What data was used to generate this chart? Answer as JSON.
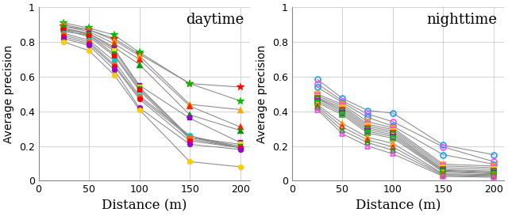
{
  "x": [
    25,
    50,
    75,
    100,
    150,
    200
  ],
  "daytime_series": [
    {
      "values": [
        0.89,
        0.87,
        0.82,
        0.73,
        0.56,
        0.54
      ],
      "color": "#ff0000",
      "marker": "*",
      "ms": 7,
      "mew": 0.5
    },
    {
      "values": [
        0.91,
        0.88,
        0.84,
        0.74,
        0.56,
        0.46
      ],
      "color": "#00bb00",
      "marker": "*",
      "ms": 7,
      "mew": 0.5
    },
    {
      "values": [
        0.9,
        0.87,
        0.81,
        0.72,
        0.44,
        0.41
      ],
      "color": "#ffaa00",
      "marker": "^",
      "ms": 6,
      "mew": 0.5
    },
    {
      "values": [
        0.89,
        0.86,
        0.79,
        0.7,
        0.43,
        0.31
      ],
      "color": "#ff2200",
      "marker": "^",
      "ms": 6,
      "mew": 0.5
    },
    {
      "values": [
        0.88,
        0.85,
        0.77,
        0.67,
        0.38,
        0.29
      ],
      "color": "#009900",
      "marker": "^",
      "ms": 6,
      "mew": 0.5
    },
    {
      "values": [
        0.87,
        0.85,
        0.76,
        0.55,
        0.36,
        0.22
      ],
      "color": "#9900cc",
      "marker": "s",
      "ms": 5,
      "mew": 0.5
    },
    {
      "values": [
        0.86,
        0.84,
        0.75,
        0.54,
        0.25,
        0.21
      ],
      "color": "#ffdd00",
      "marker": "s",
      "ms": 5,
      "mew": 0.5
    },
    {
      "values": [
        0.88,
        0.84,
        0.73,
        0.53,
        0.25,
        0.2
      ],
      "color": "#00aa00",
      "marker": "s",
      "ms": 5,
      "mew": 0.5
    },
    {
      "values": [
        0.87,
        0.83,
        0.72,
        0.52,
        0.24,
        0.19
      ],
      "color": "#ff0000",
      "marker": "s",
      "ms": 5,
      "mew": 0.5
    },
    {
      "values": [
        0.85,
        0.81,
        0.69,
        0.49,
        0.26,
        0.19
      ],
      "color": "#00cccc",
      "marker": "o",
      "ms": 5,
      "mew": 0.5
    },
    {
      "values": [
        0.84,
        0.8,
        0.67,
        0.48,
        0.25,
        0.19
      ],
      "color": "#ff6600",
      "marker": "o",
      "ms": 5,
      "mew": 0.5
    },
    {
      "values": [
        0.83,
        0.79,
        0.66,
        0.47,
        0.23,
        0.19
      ],
      "color": "#ff0000",
      "marker": "o",
      "ms": 5,
      "mew": 0.5
    },
    {
      "values": [
        0.82,
        0.78,
        0.64,
        0.42,
        0.21,
        0.18
      ],
      "color": "#9900cc",
      "marker": "o",
      "ms": 5,
      "mew": 0.5
    },
    {
      "values": [
        0.8,
        0.75,
        0.61,
        0.41,
        0.11,
        0.08
      ],
      "color": "#ffcc00",
      "marker": "o",
      "ms": 5,
      "mew": 0.5
    }
  ],
  "nighttime_series": [
    {
      "values": [
        0.585,
        0.475,
        0.405,
        0.39,
        0.205,
        0.15
      ],
      "color": "#2299ff",
      "marker": "o",
      "ms": 5,
      "mew": 1.2
    },
    {
      "values": [
        0.56,
        0.46,
        0.385,
        0.34,
        0.195,
        0.11
      ],
      "color": "#ff44ff",
      "marker": "o",
      "ms": 5,
      "mew": 1.2
    },
    {
      "values": [
        0.54,
        0.45,
        0.365,
        0.315,
        0.15,
        0.095
      ],
      "color": "#00aaff",
      "marker": "o",
      "ms": 5,
      "mew": 1.2
    },
    {
      "values": [
        0.5,
        0.44,
        0.34,
        0.305,
        0.095,
        0.085
      ],
      "color": "#ff9900",
      "marker": "s",
      "ms": 5,
      "mew": 1.2
    },
    {
      "values": [
        0.49,
        0.43,
        0.325,
        0.295,
        0.085,
        0.075
      ],
      "color": "#ff44ff",
      "marker": "s",
      "ms": 5,
      "mew": 1.2
    },
    {
      "values": [
        0.48,
        0.42,
        0.315,
        0.285,
        0.075,
        0.065
      ],
      "color": "#ffcc00",
      "marker": "s",
      "ms": 5,
      "mew": 1.2
    },
    {
      "values": [
        0.475,
        0.41,
        0.305,
        0.275,
        0.065,
        0.055
      ],
      "color": "#ff2200",
      "marker": "s",
      "ms": 5,
      "mew": 1.2
    },
    {
      "values": [
        0.47,
        0.4,
        0.295,
        0.265,
        0.06,
        0.05
      ],
      "color": "#00aa00",
      "marker": "s",
      "ms": 5,
      "mew": 1.2
    },
    {
      "values": [
        0.46,
        0.39,
        0.285,
        0.255,
        0.055,
        0.045
      ],
      "color": "#9900cc",
      "marker": "s",
      "ms": 5,
      "mew": 1.2
    },
    {
      "values": [
        0.45,
        0.38,
        0.275,
        0.245,
        0.05,
        0.04
      ],
      "color": "#00cc00",
      "marker": "s",
      "ms": 5,
      "mew": 1.2
    },
    {
      "values": [
        0.44,
        0.33,
        0.25,
        0.215,
        0.04,
        0.035
      ],
      "color": "#ff9900",
      "marker": "^",
      "ms": 5,
      "mew": 1.2
    },
    {
      "values": [
        0.43,
        0.31,
        0.235,
        0.195,
        0.035,
        0.03
      ],
      "color": "#ff2200",
      "marker": "^",
      "ms": 5,
      "mew": 1.2
    },
    {
      "values": [
        0.42,
        0.29,
        0.22,
        0.175,
        0.03,
        0.025
      ],
      "color": "#00aa00",
      "marker": "^",
      "ms": 5,
      "mew": 1.2
    },
    {
      "values": [
        0.41,
        0.27,
        0.2,
        0.155,
        0.025,
        0.02
      ],
      "color": "#ff44ff",
      "marker": "^",
      "ms": 5,
      "mew": 1.2
    }
  ],
  "line_color": "#888888",
  "line_width": 0.75,
  "daytime_title": "daytime",
  "nighttime_title": "nighttime",
  "xlabel": "Distance (m)",
  "ylabel": "Average precision",
  "day_ylim": [
    0,
    1
  ],
  "night_ylim": [
    0,
    1
  ],
  "xlim": [
    0,
    210
  ],
  "xticks": [
    0,
    50,
    100,
    150,
    200
  ],
  "yticks": [
    0,
    0.2,
    0.4,
    0.6,
    0.8,
    1
  ],
  "grid_color": "#cccccc",
  "title_fontsize": 13,
  "axis_label_fontsize": 10,
  "xlabel_fontsize": 12,
  "tick_fontsize": 9
}
